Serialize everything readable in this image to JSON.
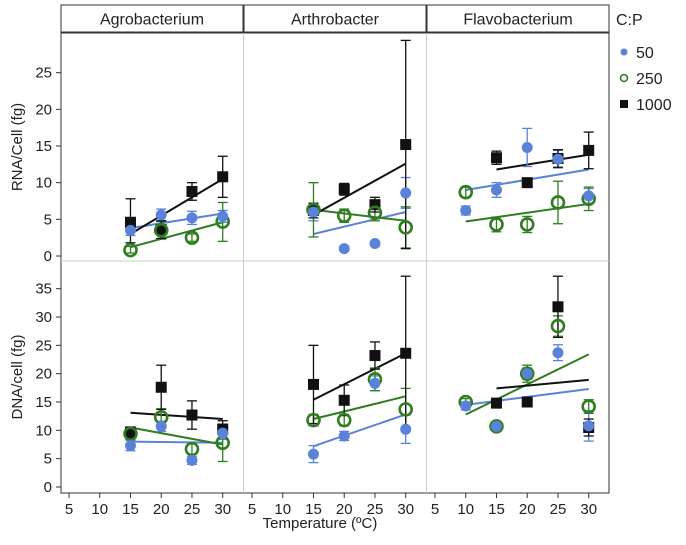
{
  "chart_data": {
    "type": "scatter",
    "facets": [
      "Agrobacterium",
      "Arthrobacter",
      "Flavobacterium"
    ],
    "xlabel": "Temperature (ºC)",
    "x_ticks": [
      5,
      10,
      15,
      20,
      25,
      30
    ],
    "xlim": [
      5,
      32
    ],
    "legend": {
      "title": "C:P",
      "placement": "top-right",
      "entries": [
        {
          "label": "50",
          "color": "#5B82D9",
          "marker": "filled-circle"
        },
        {
          "label": "250",
          "color": "#2E7D1E",
          "marker": "open-circle"
        },
        {
          "label": "1000",
          "color": "#111111",
          "marker": "filled-square"
        }
      ]
    },
    "rows": [
      {
        "ylabel": "RNA/Cell (fg)",
        "ylim": [
          0,
          30
        ],
        "y_ticks": [
          0,
          5,
          10,
          15,
          20,
          25
        ],
        "panels": [
          {
            "facet": "Agrobacterium",
            "series": [
              {
                "name": "50",
                "color": "#5B82D9",
                "marker": "filled-circle",
                "points": [
                  {
                    "x": 15,
                    "y": 3.5,
                    "lo": 2.8,
                    "hi": 4.3
                  },
                  {
                    "x": 20,
                    "y": 5.6,
                    "lo": 4.8,
                    "hi": 6.4
                  },
                  {
                    "x": 25,
                    "y": 5.2,
                    "lo": 4.3,
                    "hi": 6.1
                  },
                  {
                    "x": 30,
                    "y": 5.4,
                    "lo": 4.6,
                    "hi": 6.2
                  }
                ],
                "trend": [
                  3.8,
                  5.8
                ]
              },
              {
                "name": "250",
                "color": "#2E7D1E",
                "marker": "open-circle",
                "points": [
                  {
                    "x": 15,
                    "y": 0.8,
                    "lo": 0.4,
                    "hi": 1.3
                  },
                  {
                    "x": 20,
                    "y": 3.5,
                    "lo": 2.3,
                    "hi": 4.7
                  },
                  {
                    "x": 25,
                    "y": 2.5,
                    "lo": 2.0,
                    "hi": 3.0
                  },
                  {
                    "x": 30,
                    "y": 4.7,
                    "lo": 2.0,
                    "hi": 7.3
                  }
                ],
                "trend": [
                  1.2,
                  4.6
                ]
              },
              {
                "name": "1000",
                "color": "#111111",
                "marker": "filled-square",
                "points": [
                  {
                    "x": 15,
                    "y": 4.6,
                    "lo": 1.8,
                    "hi": 7.8
                  },
                  {
                    "x": 20,
                    "y": 3.6,
                    "lo": 2.4,
                    "hi": 4.8
                  },
                  {
                    "x": 25,
                    "y": 8.8,
                    "lo": 7.6,
                    "hi": 10.0
                  },
                  {
                    "x": 30,
                    "y": 10.8,
                    "lo": 8.0,
                    "hi": 13.6
                  }
                ],
                "trend": [
                  3.0,
                  10.5
                ]
              }
            ]
          },
          {
            "facet": "Arthrobacter",
            "series": [
              {
                "name": "50",
                "color": "#5B82D9",
                "marker": "filled-circle",
                "points": [
                  {
                    "x": 15,
                    "y": 6.0,
                    "lo": 4.8,
                    "hi": 7.2
                  },
                  {
                    "x": 20,
                    "y": 1.0,
                    "lo": 0.7,
                    "hi": 1.3
                  },
                  {
                    "x": 25,
                    "y": 1.7,
                    "lo": 1.4,
                    "hi": 2.0
                  },
                  {
                    "x": 30,
                    "y": 8.6,
                    "lo": 6.5,
                    "hi": 10.7
                  }
                ],
                "trend": [
                  3.0,
                  6.0
                ]
              },
              {
                "name": "250",
                "color": "#2E7D1E",
                "marker": "open-circle",
                "points": [
                  {
                    "x": 15,
                    "y": 6.3,
                    "lo": 2.6,
                    "hi": 10.0
                  },
                  {
                    "x": 20,
                    "y": 5.5,
                    "lo": 4.6,
                    "hi": 6.4
                  },
                  {
                    "x": 25,
                    "y": 5.9,
                    "lo": 4.8,
                    "hi": 7.0
                  },
                  {
                    "x": 30,
                    "y": 3.9,
                    "lo": 1.1,
                    "hi": 6.7
                  }
                ],
                "trend": [
                  6.3,
                  4.8
                ]
              },
              {
                "name": "1000",
                "color": "#111111",
                "marker": "filled-square",
                "points": [
                  {
                    "x": 15,
                    "y": 6.2,
                    "lo": 5.2,
                    "hi": 7.2
                  },
                  {
                    "x": 20,
                    "y": 9.1,
                    "lo": 8.3,
                    "hi": 9.9
                  },
                  {
                    "x": 25,
                    "y": 7.0,
                    "lo": 6.0,
                    "hi": 8.0
                  },
                  {
                    "x": 30,
                    "y": 15.2,
                    "lo": 1.0,
                    "hi": 29.4
                  }
                ],
                "trend": [
                  5.6,
                  12.6
                ]
              }
            ]
          },
          {
            "facet": "Flavobacterium",
            "series": [
              {
                "name": "50",
                "color": "#5B82D9",
                "marker": "filled-circle",
                "points": [
                  {
                    "x": 10,
                    "y": 6.2,
                    "lo": 5.6,
                    "hi": 6.8
                  },
                  {
                    "x": 15,
                    "y": 9.0,
                    "lo": 8.0,
                    "hi": 10.0
                  },
                  {
                    "x": 20,
                    "y": 14.8,
                    "lo": 12.2,
                    "hi": 17.4
                  },
                  {
                    "x": 25,
                    "y": 13.2,
                    "lo": 12.0,
                    "hi": 14.4
                  },
                  {
                    "x": 30,
                    "y": 8.2,
                    "lo": 7.2,
                    "hi": 9.2
                  }
                ],
                "trend": [
                  9.0,
                  11.8
                ]
              },
              {
                "name": "250",
                "color": "#2E7D1E",
                "marker": "open-circle",
                "points": [
                  {
                    "x": 10,
                    "y": 8.7,
                    "lo": 8.0,
                    "hi": 9.4
                  },
                  {
                    "x": 15,
                    "y": 4.3,
                    "lo": 3.3,
                    "hi": 5.3
                  },
                  {
                    "x": 20,
                    "y": 4.3,
                    "lo": 3.2,
                    "hi": 5.4
                  },
                  {
                    "x": 25,
                    "y": 7.3,
                    "lo": 4.4,
                    "hi": 10.2
                  },
                  {
                    "x": 30,
                    "y": 7.8,
                    "lo": 6.2,
                    "hi": 9.4
                  }
                ],
                "trend": [
                  4.7,
                  7.1
                ]
              },
              {
                "name": "1000",
                "color": "#111111",
                "marker": "filled-square",
                "points": [
                  {
                    "x": 15,
                    "y": 13.4,
                    "lo": 12.5,
                    "hi": 14.3
                  },
                  {
                    "x": 20,
                    "y": 10.0,
                    "lo": 9.4,
                    "hi": 10.6
                  },
                  {
                    "x": 25,
                    "y": 13.3,
                    "lo": 12.1,
                    "hi": 14.5
                  },
                  {
                    "x": 30,
                    "y": 14.4,
                    "lo": 11.9,
                    "hi": 16.9
                  }
                ],
                "trend": [
                  11.8,
                  13.8
                ]
              }
            ]
          }
        ]
      },
      {
        "ylabel": "DNA/cell (fg)",
        "ylim": [
          0,
          39
        ],
        "y_ticks": [
          0,
          5,
          10,
          15,
          20,
          25,
          30,
          35
        ],
        "panels": [
          {
            "facet": "Agrobacterium",
            "series": [
              {
                "name": "50",
                "color": "#5B82D9",
                "marker": "filled-circle",
                "points": [
                  {
                    "x": 15,
                    "y": 7.3,
                    "lo": 6.4,
                    "hi": 8.2
                  },
                  {
                    "x": 20,
                    "y": 10.7,
                    "lo": 9.8,
                    "hi": 11.6
                  },
                  {
                    "x": 25,
                    "y": 4.7,
                    "lo": 4.0,
                    "hi": 5.4
                  },
                  {
                    "x": 30,
                    "y": 9.5,
                    "lo": 8.4,
                    "hi": 10.6
                  }
                ],
                "trend": [
                  8.0,
                  7.8
                ]
              },
              {
                "name": "250",
                "color": "#2E7D1E",
                "marker": "open-circle",
                "points": [
                  {
                    "x": 15,
                    "y": 9.4,
                    "lo": 8.4,
                    "hi": 10.4
                  },
                  {
                    "x": 20,
                    "y": 12.3,
                    "lo": 10.8,
                    "hi": 13.8
                  },
                  {
                    "x": 25,
                    "y": 6.7,
                    "lo": 5.8,
                    "hi": 7.6
                  },
                  {
                    "x": 30,
                    "y": 7.8,
                    "lo": 4.5,
                    "hi": 11.1
                  }
                ],
                "trend": [
                  10.5,
                  7.5
                ]
              },
              {
                "name": "1000",
                "color": "#111111",
                "marker": "filled-square",
                "points": [
                  {
                    "x": 15,
                    "y": 9.6,
                    "lo": 8.6,
                    "hi": 10.6
                  },
                  {
                    "x": 20,
                    "y": 17.6,
                    "lo": 13.7,
                    "hi": 21.5
                  },
                  {
                    "x": 25,
                    "y": 12.7,
                    "lo": 10.2,
                    "hi": 15.2
                  },
                  {
                    "x": 30,
                    "y": 10.2,
                    "lo": 8.7,
                    "hi": 11.7
                  }
                ],
                "trend": [
                  13.1,
                  12.0
                ]
              }
            ]
          },
          {
            "facet": "Arthrobacter",
            "series": [
              {
                "name": "50",
                "color": "#5B82D9",
                "marker": "filled-circle",
                "points": [
                  {
                    "x": 15,
                    "y": 5.8,
                    "lo": 4.3,
                    "hi": 7.3
                  },
                  {
                    "x": 20,
                    "y": 9.0,
                    "lo": 8.2,
                    "hi": 9.8
                  },
                  {
                    "x": 25,
                    "y": 18.3,
                    "lo": 17.0,
                    "hi": 19.6
                  },
                  {
                    "x": 30,
                    "y": 10.2,
                    "lo": 7.7,
                    "hi": 12.7
                  }
                ],
                "trend": [
                  7.2,
                  12.8
                ]
              },
              {
                "name": "250",
                "color": "#2E7D1E",
                "marker": "open-circle",
                "points": [
                  {
                    "x": 15,
                    "y": 11.8,
                    "lo": 10.8,
                    "hi": 12.8
                  },
                  {
                    "x": 20,
                    "y": 11.8,
                    "lo": 10.8,
                    "hi": 12.8
                  },
                  {
                    "x": 25,
                    "y": 19.0,
                    "lo": 17.0,
                    "hi": 21.0
                  },
                  {
                    "x": 30,
                    "y": 13.7,
                    "lo": 10.0,
                    "hi": 17.4
                  }
                ],
                "trend": [
                  12.0,
                  16.0
                ]
              },
              {
                "name": "1000",
                "color": "#111111",
                "marker": "filled-square",
                "points": [
                  {
                    "x": 15,
                    "y": 18.1,
                    "lo": 11.2,
                    "hi": 25.0
                  },
                  {
                    "x": 20,
                    "y": 15.3,
                    "lo": 12.6,
                    "hi": 18.0
                  },
                  {
                    "x": 25,
                    "y": 23.2,
                    "lo": 20.8,
                    "hi": 25.6
                  },
                  {
                    "x": 30,
                    "y": 23.6,
                    "lo": 10.0,
                    "hi": 37.2
                  }
                ],
                "trend": [
                  15.4,
                  23.6
                ]
              }
            ]
          },
          {
            "facet": "Flavobacterium",
            "series": [
              {
                "name": "50",
                "color": "#5B82D9",
                "marker": "filled-circle",
                "points": [
                  {
                    "x": 10,
                    "y": 14.3,
                    "lo": 13.6,
                    "hi": 15.0
                  },
                  {
                    "x": 15,
                    "y": 10.7,
                    "lo": 10.0,
                    "hi": 11.4
                  },
                  {
                    "x": 20,
                    "y": 20.0,
                    "lo": 19.0,
                    "hi": 21.0
                  },
                  {
                    "x": 25,
                    "y": 23.7,
                    "lo": 22.3,
                    "hi": 25.1
                  },
                  {
                    "x": 30,
                    "y": 10.8,
                    "lo": 8.1,
                    "hi": 13.5
                  }
                ],
                "trend": [
                  14.5,
                  17.3
                ]
              },
              {
                "name": "250",
                "color": "#2E7D1E",
                "marker": "open-circle",
                "points": [
                  {
                    "x": 10,
                    "y": 15.0,
                    "lo": 14.4,
                    "hi": 15.6
                  },
                  {
                    "x": 15,
                    "y": 10.7,
                    "lo": 10.1,
                    "hi": 11.3
                  },
                  {
                    "x": 20,
                    "y": 20.0,
                    "lo": 18.5,
                    "hi": 21.5
                  },
                  {
                    "x": 25,
                    "y": 28.4,
                    "lo": 26.6,
                    "hi": 30.2
                  },
                  {
                    "x": 30,
                    "y": 14.2,
                    "lo": 13.0,
                    "hi": 15.4
                  }
                ],
                "trend": [
                  12.8,
                  23.4
                ]
              },
              {
                "name": "1000",
                "color": "#111111",
                "marker": "filled-square",
                "points": [
                  {
                    "x": 15,
                    "y": 14.8,
                    "lo": 14.0,
                    "hi": 15.6
                  },
                  {
                    "x": 20,
                    "y": 15.0,
                    "lo": 14.4,
                    "hi": 15.6
                  },
                  {
                    "x": 25,
                    "y": 31.8,
                    "lo": 26.4,
                    "hi": 37.2
                  },
                  {
                    "x": 30,
                    "y": 10.5,
                    "lo": 9.0,
                    "hi": 12.0
                  }
                ],
                "trend": [
                  17.4,
                  18.9
                ]
              }
            ]
          }
        ]
      }
    ]
  }
}
